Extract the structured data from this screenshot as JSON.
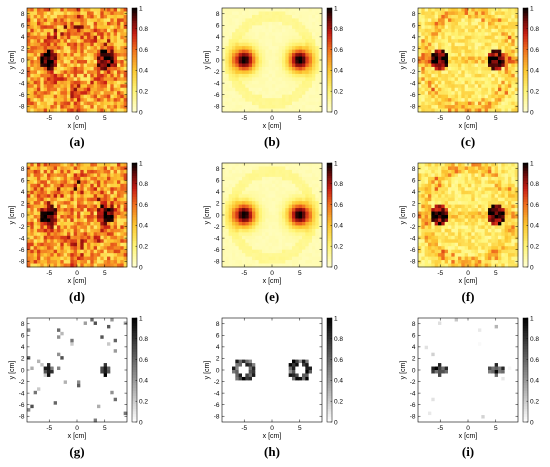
{
  "chart_data": [
    {
      "type": "heatmap",
      "panel": "a",
      "caption": "(a)",
      "colormap": "hot",
      "pattern": "ring",
      "xlabel": "x [cm]",
      "ylabel": "y [cm]",
      "xlim": [
        -9,
        9
      ],
      "ylim": [
        -9,
        9
      ],
      "xticks": [
        "-5",
        "0",
        "5"
      ],
      "yticks": [
        "-8",
        "-6",
        "-4",
        "-2",
        "0",
        "2",
        "4",
        "6",
        "8"
      ],
      "colorbar": {
        "min": 0,
        "max": 1,
        "ticks": [
          "0",
          "0.2",
          "0.4",
          "0.6",
          "0.8",
          "1"
        ]
      },
      "sources": [
        {
          "x": -5,
          "y": 0
        },
        {
          "x": 5,
          "y": 0
        }
      ]
    },
    {
      "type": "heatmap",
      "panel": "b",
      "caption": "(b)",
      "colormap": "hot",
      "pattern": "smooth",
      "xlabel": "x [cm]",
      "ylabel": "y [cm]",
      "xlim": [
        -9,
        9
      ],
      "ylim": [
        -9,
        9
      ],
      "xticks": [
        "-5",
        "0",
        "5"
      ],
      "yticks": [
        "-8",
        "-6",
        "-4",
        "-2",
        "0",
        "2",
        "4",
        "6",
        "8"
      ],
      "colorbar": {
        "min": 0,
        "max": 1,
        "ticks": [
          "0",
          "0.2",
          "0.4",
          "0.6",
          "0.8",
          "1"
        ]
      },
      "sources": [
        {
          "x": -5,
          "y": 0
        },
        {
          "x": 5,
          "y": 0
        }
      ]
    },
    {
      "type": "heatmap",
      "panel": "c",
      "caption": "(c)",
      "colormap": "hot",
      "pattern": "ellipse",
      "xlabel": "x [cm]",
      "ylabel": "y [cm]",
      "xlim": [
        -9,
        9
      ],
      "ylim": [
        -9,
        9
      ],
      "xticks": [
        "-5",
        "0",
        "5"
      ],
      "yticks": [
        "-8",
        "-6",
        "-4",
        "-2",
        "0",
        "2",
        "4",
        "6",
        "8"
      ],
      "colorbar": {
        "min": 0,
        "max": 1,
        "ticks": [
          "0",
          "0.2",
          "0.4",
          "0.6",
          "0.8",
          "1"
        ]
      },
      "sources": [
        {
          "x": -5,
          "y": 0
        },
        {
          "x": 5,
          "y": 0
        }
      ]
    },
    {
      "type": "heatmap",
      "panel": "d",
      "caption": "(d)",
      "colormap": "hot",
      "pattern": "ring",
      "xlabel": "x [cm]",
      "ylabel": "y [cm]",
      "xlim": [
        -9,
        9
      ],
      "ylim": [
        -9,
        9
      ],
      "xticks": [
        "-5",
        "0",
        "5"
      ],
      "yticks": [
        "-8",
        "-6",
        "-4",
        "-2",
        "0",
        "2",
        "4",
        "6",
        "8"
      ],
      "colorbar": {
        "min": 0,
        "max": 1,
        "ticks": [
          "0",
          "0.2",
          "0.4",
          "0.6",
          "0.8",
          "1"
        ]
      },
      "sources": [
        {
          "x": -5,
          "y": 0
        },
        {
          "x": 5,
          "y": 0
        }
      ]
    },
    {
      "type": "heatmap",
      "panel": "e",
      "caption": "(e)",
      "colormap": "hot",
      "pattern": "smooth",
      "xlabel": "x [cm]",
      "ylabel": "y [cm]",
      "xlim": [
        -9,
        9
      ],
      "ylim": [
        -9,
        9
      ],
      "xticks": [
        "-5",
        "0",
        "5"
      ],
      "yticks": [
        "-8",
        "-6",
        "-4",
        "-2",
        "0",
        "2",
        "4",
        "6",
        "8"
      ],
      "colorbar": {
        "min": 0,
        "max": 1,
        "ticks": [
          "0",
          "0.2",
          "0.4",
          "0.6",
          "0.8",
          "1"
        ]
      },
      "sources": [
        {
          "x": -5,
          "y": 0
        },
        {
          "x": 5,
          "y": 0
        }
      ]
    },
    {
      "type": "heatmap",
      "panel": "f",
      "caption": "(f)",
      "colormap": "hot",
      "pattern": "ellipse",
      "xlabel": "x [cm]",
      "ylabel": "y [cm]",
      "xlim": [
        -9,
        9
      ],
      "ylim": [
        -9,
        9
      ],
      "xticks": [
        "-5",
        "0",
        "5"
      ],
      "yticks": [
        "-8",
        "-6",
        "-4",
        "-2",
        "0",
        "2",
        "4",
        "6",
        "8"
      ],
      "colorbar": {
        "min": 0,
        "max": 1,
        "ticks": [
          "0",
          "0.2",
          "0.4",
          "0.6",
          "0.8",
          "1"
        ]
      },
      "sources": [
        {
          "x": -5,
          "y": 0
        },
        {
          "x": 5,
          "y": 0
        }
      ]
    },
    {
      "type": "heatmap",
      "panel": "g",
      "caption": "(g)",
      "colormap": "gray",
      "pattern": "sparse",
      "xlabel": "x [cm]",
      "ylabel": "y [cm]",
      "xlim": [
        -9,
        9
      ],
      "ylim": [
        -9,
        9
      ],
      "xticks": [
        "-5",
        "0",
        "5"
      ],
      "yticks": [
        "-8",
        "-6",
        "-4",
        "-2",
        "0",
        "2",
        "4",
        "6",
        "8"
      ],
      "colorbar": {
        "min": 0,
        "max": 1,
        "ticks": [
          "0",
          "0.2",
          "0.4",
          "0.6",
          "0.8",
          "1"
        ]
      },
      "sources": [
        {
          "x": -5,
          "y": 0
        },
        {
          "x": 5,
          "y": 0
        }
      ]
    },
    {
      "type": "heatmap",
      "panel": "h",
      "caption": "(h)",
      "colormap": "gray",
      "pattern": "outline",
      "xlabel": "x [cm]",
      "ylabel": "y [cm]",
      "xlim": [
        -9,
        9
      ],
      "ylim": [
        -9,
        9
      ],
      "xticks": [
        "-5",
        "0",
        "5"
      ],
      "yticks": [
        "-8",
        "-6",
        "-4",
        "-2",
        "0",
        "2",
        "4",
        "6",
        "8"
      ],
      "colorbar": {
        "min": 0,
        "max": 1,
        "ticks": [
          "0",
          "0.2",
          "0.4",
          "0.6",
          "0.8",
          "1"
        ]
      },
      "sources": [
        {
          "x": -5,
          "y": 0
        },
        {
          "x": 5,
          "y": 0
        }
      ]
    },
    {
      "type": "heatmap",
      "panel": "i",
      "caption": "(i)",
      "colormap": "gray",
      "pattern": "cross",
      "xlabel": "x [cm]",
      "ylabel": "y [cm]",
      "xlim": [
        -9,
        9
      ],
      "ylim": [
        -9,
        9
      ],
      "xticks": [
        "-5",
        "0",
        "5"
      ],
      "yticks": [
        "-8",
        "-6",
        "-4",
        "-2",
        "0",
        "2",
        "4",
        "6",
        "8"
      ],
      "colorbar": {
        "min": 0,
        "max": 1,
        "ticks": [
          "0",
          "0.2",
          "0.4",
          "0.6",
          "0.8",
          "1"
        ]
      },
      "sources": [
        {
          "x": -5,
          "y": 0
        },
        {
          "x": 5,
          "y": 0
        }
      ]
    }
  ]
}
